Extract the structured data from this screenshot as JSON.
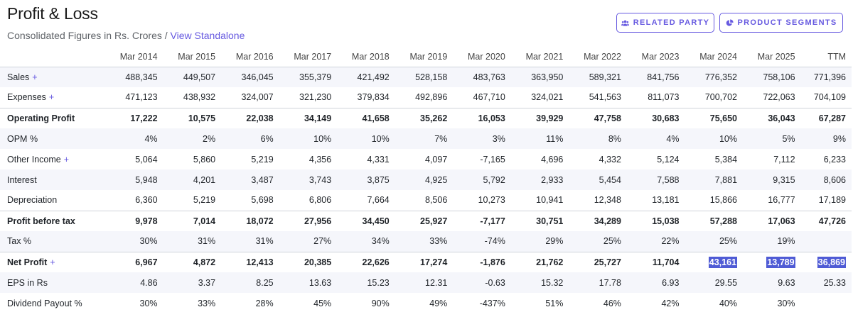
{
  "header": {
    "title": "Profit & Loss",
    "subtitle": "Consolidated Figures in Rs. Crores /",
    "standalone_link": "View Standalone",
    "related_party_label": "RELATED PARTY",
    "product_segments_label": "PRODUCT SEGMENTS"
  },
  "table": {
    "columns": [
      "Mar 2014",
      "Mar 2015",
      "Mar 2016",
      "Mar 2017",
      "Mar 2018",
      "Mar 2019",
      "Mar 2020",
      "Mar 2021",
      "Mar 2022",
      "Mar 2023",
      "Mar 2024",
      "Mar 2025",
      "TTM"
    ],
    "rows": [
      {
        "label": "Sales",
        "plus": "+",
        "values": [
          "488,345",
          "449,507",
          "346,045",
          "355,379",
          "421,492",
          "528,158",
          "483,763",
          "363,950",
          "589,321",
          "841,756",
          "776,352",
          "758,106",
          "771,396"
        ]
      },
      {
        "label": "Expenses",
        "plus": "+",
        "values": [
          "471,123",
          "438,932",
          "324,007",
          "321,230",
          "379,834",
          "492,896",
          "467,710",
          "324,021",
          "541,563",
          "811,073",
          "700,702",
          "722,063",
          "704,109"
        ]
      },
      {
        "label": "Operating Profit",
        "values": [
          "17,222",
          "10,575",
          "22,038",
          "34,149",
          "41,658",
          "35,262",
          "16,053",
          "39,929",
          "47,758",
          "30,683",
          "75,650",
          "36,043",
          "67,287"
        ]
      },
      {
        "label": "OPM %",
        "values": [
          "4%",
          "2%",
          "6%",
          "10%",
          "10%",
          "7%",
          "3%",
          "11%",
          "8%",
          "4%",
          "10%",
          "5%",
          "9%"
        ]
      },
      {
        "label": "Other Income",
        "plus": "+",
        "values": [
          "5,064",
          "5,860",
          "5,219",
          "4,356",
          "4,331",
          "4,097",
          "-7,165",
          "4,696",
          "4,332",
          "5,124",
          "5,384",
          "7,112",
          "6,233"
        ]
      },
      {
        "label": "Interest",
        "values": [
          "5,948",
          "4,201",
          "3,487",
          "3,743",
          "3,875",
          "4,925",
          "5,792",
          "2,933",
          "5,454",
          "7,588",
          "7,881",
          "9,315",
          "8,606"
        ]
      },
      {
        "label": "Depreciation",
        "values": [
          "6,360",
          "5,219",
          "5,698",
          "6,806",
          "7,664",
          "8,506",
          "10,273",
          "10,941",
          "12,348",
          "13,181",
          "15,866",
          "16,777",
          "17,189"
        ]
      },
      {
        "label": "Profit before tax",
        "values": [
          "9,978",
          "7,014",
          "18,072",
          "27,956",
          "34,450",
          "25,927",
          "-7,177",
          "30,751",
          "34,289",
          "15,038",
          "57,288",
          "17,063",
          "47,726"
        ]
      },
      {
        "label": "Tax %",
        "values": [
          "30%",
          "31%",
          "31%",
          "27%",
          "34%",
          "33%",
          "-74%",
          "29%",
          "25%",
          "22%",
          "25%",
          "19%",
          ""
        ]
      },
      {
        "label": "Net Profit",
        "plus": "+",
        "values": [
          "6,967",
          "4,872",
          "12,413",
          "20,385",
          "22,626",
          "17,274",
          "-1,876",
          "21,762",
          "25,727",
          "11,704",
          "43,161",
          "13,789",
          "36,869"
        ]
      },
      {
        "label": "EPS in Rs",
        "values": [
          "4.86",
          "3.37",
          "8.25",
          "13.63",
          "15.23",
          "12.31",
          "-0.63",
          "15.32",
          "17.78",
          "6.93",
          "29.55",
          "9.63",
          "25.33"
        ]
      },
      {
        "label": "Dividend Payout %",
        "values": [
          "30%",
          "33%",
          "28%",
          "45%",
          "90%",
          "49%",
          "-437%",
          "51%",
          "46%",
          "42%",
          "40%",
          "30%",
          ""
        ]
      }
    ]
  }
}
